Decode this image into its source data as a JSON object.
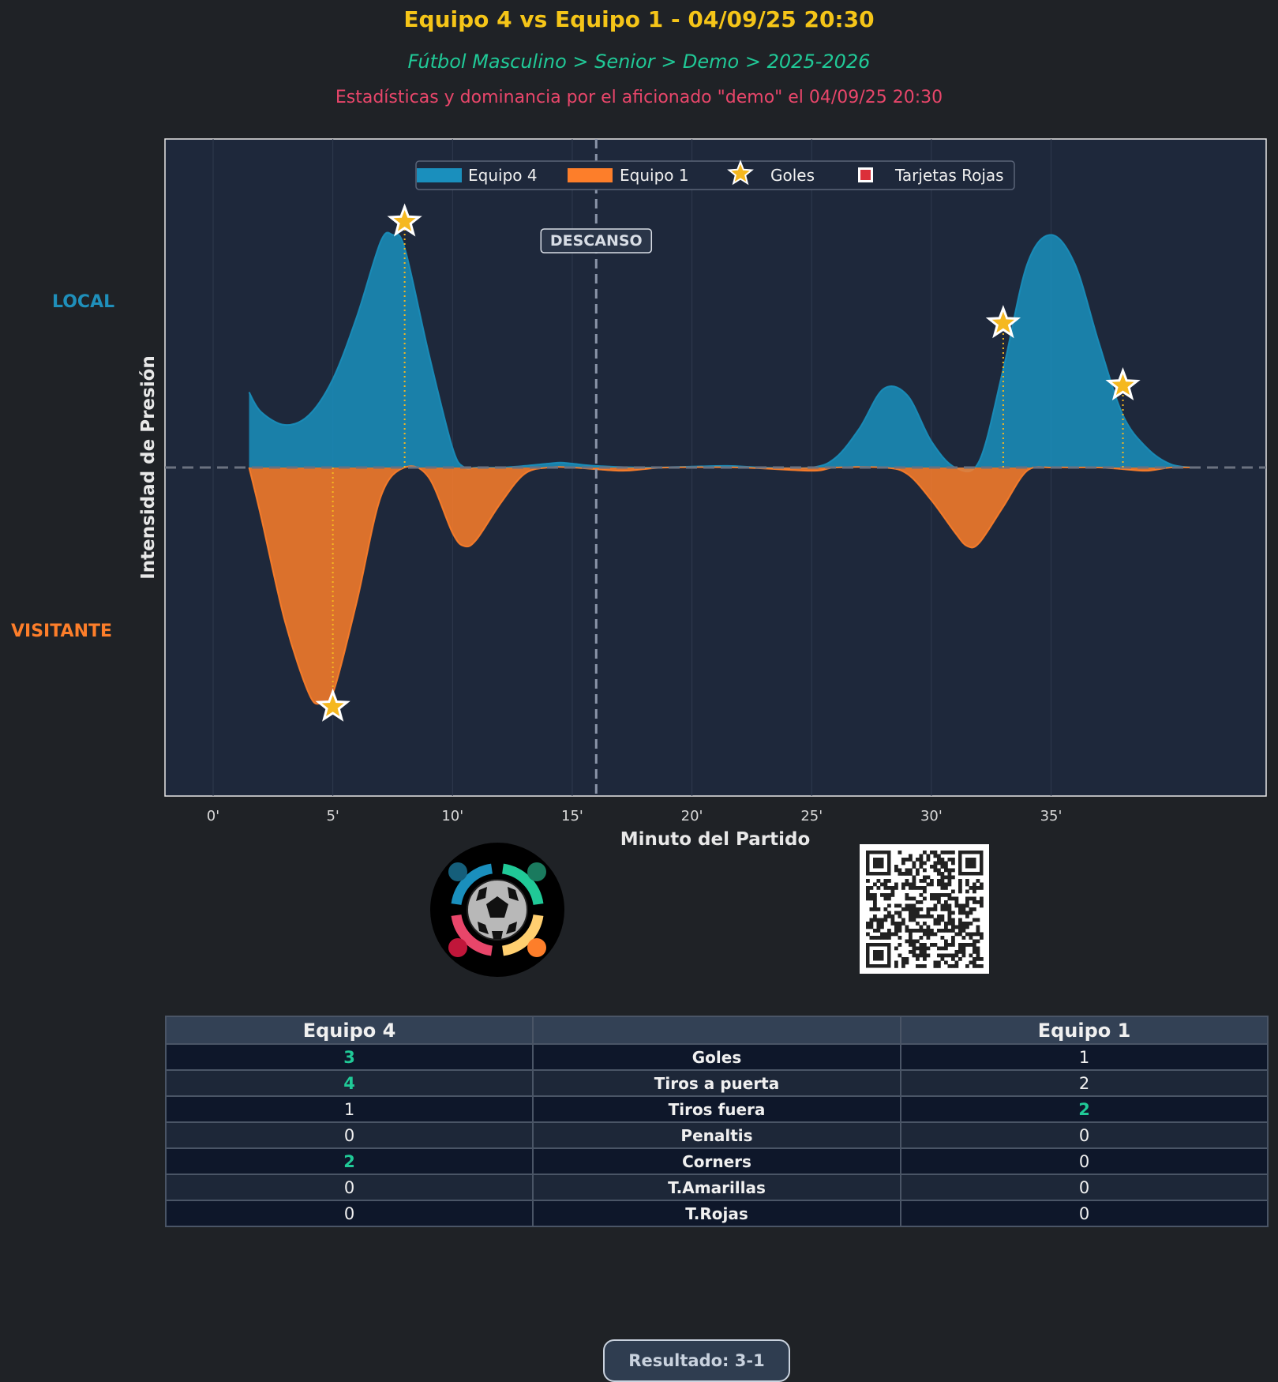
{
  "header": {
    "title": "Equipo 4 vs Equipo 1 - 04/09/25 20:30",
    "subtitle": "Fútbol Masculino > Senior > Demo > 2025-2026",
    "byline": "Estadísticas y dominancia por el aficionado \"demo\" el 04/09/25 20:30"
  },
  "side_labels": {
    "local": "LOCAL",
    "visitante": "VISITANTE"
  },
  "colors": {
    "home": "#1a8fbd",
    "away": "#fd7e2a",
    "goal": "#f5b820",
    "red_card": "#dc2f3a",
    "accent_win": "#20c997"
  },
  "chart_data": {
    "type": "area",
    "title": "",
    "xlabel": "Minuto del Partido",
    "ylabel": "Intensidad de Presión",
    "xlim": [
      -2,
      44
    ],
    "ylim": [
      -1.0,
      1.0
    ],
    "x_ticks": [
      0,
      5,
      10,
      15,
      20,
      25,
      30,
      35
    ],
    "x_tick_labels": [
      "0'",
      "5'",
      "10'",
      "15'",
      "20'",
      "25'",
      "30'",
      "35'"
    ],
    "halftime": {
      "minute": 16,
      "label": "DESCANSO"
    },
    "legend": {
      "position": "top-center",
      "entries": [
        "Equipo 4",
        "Equipo 1",
        "Goles",
        "Tarjetas Rojas"
      ]
    },
    "series": [
      {
        "name": "Equipo 4",
        "side": "home",
        "x": [
          1.5,
          2,
          3,
          4,
          5,
          6,
          7,
          7.5,
          8,
          9,
          10,
          10.5,
          11,
          12,
          13,
          14,
          14.5,
          15,
          16,
          18,
          20,
          21.5,
          23,
          25,
          26,
          27,
          28,
          29,
          30,
          31,
          32,
          33,
          34,
          35,
          36,
          37,
          38,
          39,
          40,
          41
        ],
        "values": [
          0.23,
          0.17,
          0.13,
          0.16,
          0.27,
          0.46,
          0.69,
          0.71,
          0.67,
          0.35,
          0.06,
          0.0,
          0.0,
          0.0,
          0.005,
          0.012,
          0.015,
          0.012,
          0.005,
          0.0,
          0.003,
          0.005,
          0.0,
          0.0,
          0.03,
          0.12,
          0.24,
          0.22,
          0.08,
          0.0,
          0.02,
          0.3,
          0.62,
          0.71,
          0.62,
          0.38,
          0.16,
          0.06,
          0.01,
          0.0
        ]
      },
      {
        "name": "Equipo 1",
        "side": "away",
        "x": [
          1.5,
          2,
          3,
          4,
          4.5,
          5,
          6,
          7,
          8,
          9,
          10,
          10.5,
          11,
          12,
          13,
          14,
          15,
          17,
          18,
          19,
          22,
          25,
          26,
          28,
          29,
          30,
          31,
          31.5,
          32,
          33,
          34,
          35,
          36,
          37,
          38,
          39,
          40,
          41
        ],
        "values": [
          0.0,
          -0.15,
          -0.47,
          -0.69,
          -0.72,
          -0.69,
          -0.41,
          -0.09,
          0.0,
          -0.03,
          -0.2,
          -0.24,
          -0.22,
          -0.11,
          -0.02,
          0.0,
          0.0,
          -0.01,
          -0.005,
          0.0,
          0.0,
          -0.01,
          0.0,
          0.0,
          -0.02,
          -0.1,
          -0.2,
          -0.24,
          -0.23,
          -0.12,
          -0.01,
          0.0,
          0.0,
          0.0,
          -0.005,
          -0.01,
          0.0,
          0.0
        ]
      }
    ],
    "goals": [
      {
        "team": "Equipo 4",
        "minute": 8,
        "value": 0.75
      },
      {
        "team": "Equipo 1",
        "minute": 5,
        "value": -0.73
      },
      {
        "team": "Equipo 4",
        "minute": 33,
        "value": 0.44
      },
      {
        "team": "Equipo 4",
        "minute": 38,
        "value": 0.25
      }
    ],
    "red_cards": []
  },
  "stats": {
    "home_header": "Equipo 4",
    "middle_header": "",
    "away_header": "Equipo 1",
    "rows": [
      {
        "home": "3",
        "label": "Goles",
        "away": "1",
        "winner": "home"
      },
      {
        "home": "4",
        "label": "Tiros a puerta",
        "away": "2",
        "winner": "home"
      },
      {
        "home": "1",
        "label": "Tiros fuera",
        "away": "2",
        "winner": "away"
      },
      {
        "home": "0",
        "label": "Penaltis",
        "away": "0",
        "winner": "none"
      },
      {
        "home": "2",
        "label": "Corners",
        "away": "0",
        "winner": "home"
      },
      {
        "home": "0",
        "label": "T.Amarillas",
        "away": "0",
        "winner": "none"
      },
      {
        "home": "0",
        "label": "T.Rojas",
        "away": "0",
        "winner": "none"
      }
    ]
  },
  "result": "Resultado: 3-1"
}
